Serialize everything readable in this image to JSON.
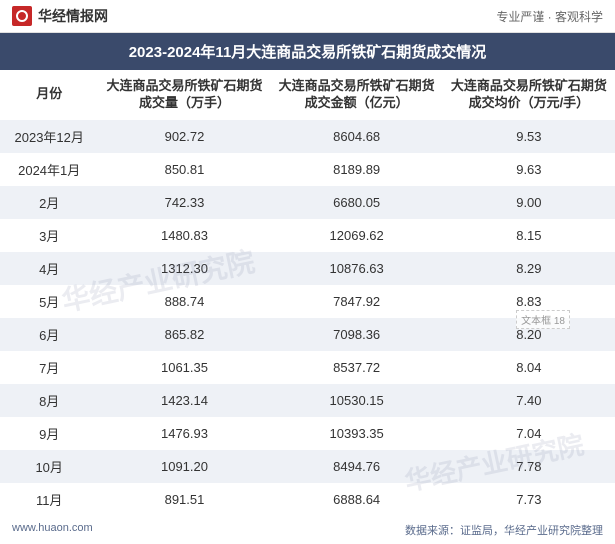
{
  "header": {
    "logo_text": "华经情报网",
    "tagline": "专业严谨 · 客观科学"
  },
  "title": "2023-2024年11月大连商品交易所铁矿石期货成交情况",
  "columns": {
    "month": "月份",
    "volume": "大连商品交易所铁矿石期货成交量（万手）",
    "amount": "大连商品交易所铁矿石期货成交金额（亿元）",
    "avg": "大连商品交易所铁矿石期货成交均价（万元/手）"
  },
  "rows": [
    {
      "month": "2023年12月",
      "volume": "902.72",
      "amount": "8604.68",
      "avg": "9.53"
    },
    {
      "month": "2024年1月",
      "volume": "850.81",
      "amount": "8189.89",
      "avg": "9.63"
    },
    {
      "month": "2月",
      "volume": "742.33",
      "amount": "6680.05",
      "avg": "9.00"
    },
    {
      "month": "3月",
      "volume": "1480.83",
      "amount": "12069.62",
      "avg": "8.15"
    },
    {
      "month": "4月",
      "volume": "1312.30",
      "amount": "10876.63",
      "avg": "8.29"
    },
    {
      "month": "5月",
      "volume": "888.74",
      "amount": "7847.92",
      "avg": "8.83"
    },
    {
      "month": "6月",
      "volume": "865.82",
      "amount": "7098.36",
      "avg": "8.20"
    },
    {
      "month": "7月",
      "volume": "1061.35",
      "amount": "8537.72",
      "avg": "8.04"
    },
    {
      "month": "8月",
      "volume": "1423.14",
      "amount": "10530.15",
      "avg": "7.40"
    },
    {
      "month": "9月",
      "volume": "1476.93",
      "amount": "10393.35",
      "avg": "7.04"
    },
    {
      "month": "10月",
      "volume": "1091.20",
      "amount": "8494.76",
      "avg": "7.78"
    },
    {
      "month": "11月",
      "volume": "891.51",
      "amount": "6888.64",
      "avg": "7.73"
    }
  ],
  "footer": {
    "site": "www.huaon.com",
    "source": "数据来源：证监局，华经产业研究院整理"
  },
  "watermark": "华经产业研究院",
  "textbox_label": "文本框 18",
  "styling": {
    "title_bg": "#3a4a6b",
    "row_odd_bg": "#eef1f6",
    "row_even_bg": "#ffffff",
    "text_color": "#333333",
    "footer_color": "#5a6b8c",
    "logo_color": "#c62828",
    "font_family": "Microsoft YaHei",
    "title_fontsize": 15,
    "body_fontsize": 13,
    "footer_fontsize": 11
  }
}
